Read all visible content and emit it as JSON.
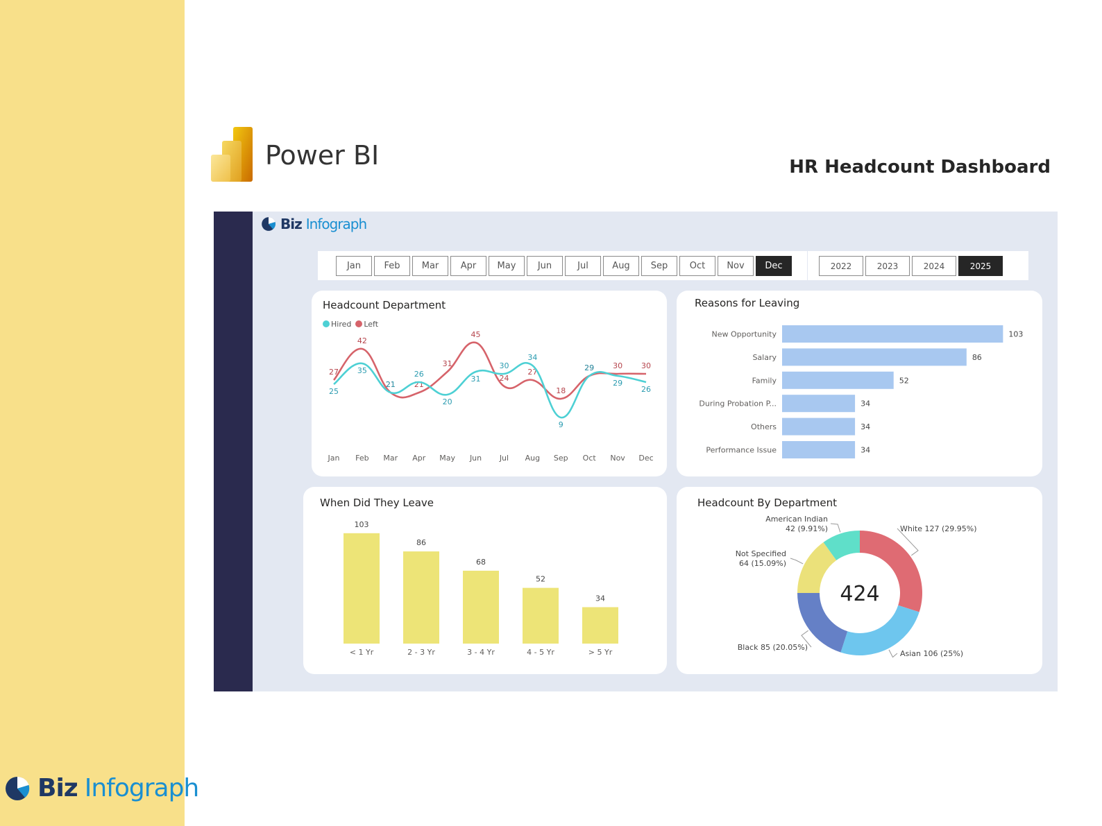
{
  "slide": {
    "product_name": "Power BI",
    "dashboard_title": "HR Headcount Dashboard",
    "footer_brand": {
      "word1": "Biz",
      "word2": "Infograph"
    }
  },
  "dashboard": {
    "brand": {
      "word1": "Biz",
      "word2": "Infograph"
    },
    "months": [
      "Jan",
      "Feb",
      "Mar",
      "Apr",
      "May",
      "Jun",
      "Jul",
      "Aug",
      "Sep",
      "Oct",
      "Nov",
      "Dec"
    ],
    "selected_month": "Dec",
    "years": [
      "2022",
      "2023",
      "2024",
      "2025"
    ],
    "selected_year": "2025"
  },
  "colors": {
    "strip": "#f8e08a",
    "hired": "#4dd0d4",
    "left": "#d6636a",
    "reason_bar": "#a8c8f0",
    "leave_bar": "#ede477",
    "dark_side": "#2a2a4e"
  },
  "chart_data": [
    {
      "id": "headcount_department",
      "type": "line",
      "title": "Headcount Department",
      "categories": [
        "Jan",
        "Feb",
        "Mar",
        "Apr",
        "May",
        "Jun",
        "Jul",
        "Aug",
        "Sep",
        "Oct",
        "Nov",
        "Dec"
      ],
      "series": [
        {
          "name": "Hired",
          "color": "#4dd0d4",
          "values": [
            25,
            35,
            21,
            26,
            20,
            31,
            30,
            34,
            9,
            29,
            29,
            26
          ]
        },
        {
          "name": "Left",
          "color": "#d6636a",
          "values": [
            27,
            42,
            21,
            21,
            31,
            45,
            24,
            27,
            18,
            29,
            30,
            30
          ]
        }
      ],
      "ylim": [
        0,
        50
      ],
      "legend_position": "top-left",
      "grid": false
    },
    {
      "id": "reasons_for_leaving",
      "type": "bar",
      "orientation": "horizontal",
      "title": "Reasons for Leaving",
      "categories": [
        "New Opportunity",
        "Salary",
        "Family",
        "During Probation P...",
        "Others",
        "Performance Issue"
      ],
      "values": [
        103,
        86,
        52,
        34,
        34,
        34
      ],
      "xlim": [
        0,
        110
      ]
    },
    {
      "id": "when_did_they_leave",
      "type": "bar",
      "title": "When Did They Leave",
      "categories": [
        "< 1 Yr",
        "2 - 3 Yr",
        "3 - 4 Yr",
        "4 - 5 Yr",
        "> 5 Yr"
      ],
      "values": [
        103,
        86,
        68,
        52,
        34
      ],
      "ylim": [
        0,
        110
      ]
    },
    {
      "id": "headcount_by_department",
      "type": "pie",
      "style": "donut",
      "title": "Headcount By Department",
      "center_label": "424",
      "slices": [
        {
          "label": "White",
          "value": 127,
          "pct": "29.95%",
          "color": "#df6b73",
          "text": "White 127 (29.95%)"
        },
        {
          "label": "Asian",
          "value": 106,
          "pct": "25%",
          "color": "#6ec6ee",
          "text": "Asian 106 (25%)"
        },
        {
          "label": "Black",
          "value": 85,
          "pct": "20.05%",
          "color": "#6580c6",
          "text": "Black 85 (20.05%)"
        },
        {
          "label": "Not Specified",
          "value": 64,
          "pct": "15.09%",
          "color": "#ebe17a",
          "text_line1": "Not Specified",
          "text_line2": "64 (15.09%)"
        },
        {
          "label": "American Indian",
          "value": 42,
          "pct": "9.91%",
          "color": "#5fdfc9",
          "text_line1": "American Indian",
          "text_line2": "42 (9.91%)"
        }
      ]
    }
  ]
}
